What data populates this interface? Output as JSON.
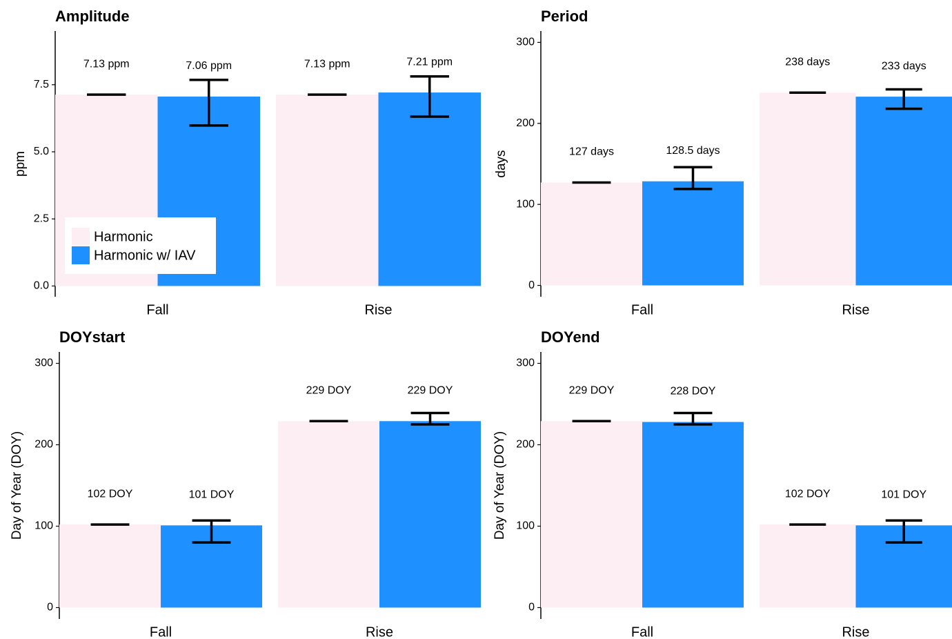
{
  "chart_data": [
    {
      "type": "bar",
      "title": "Amplitude",
      "ylabel": "ppm",
      "categories": [
        "Fall",
        "Rise"
      ],
      "series": [
        {
          "name": "Harmonic",
          "color": "#fdeef3",
          "values": [
            7.13,
            7.13
          ],
          "value_labels": [
            "7.13 ppm",
            "7.13 ppm"
          ],
          "error_low": [
            7.13,
            7.13
          ],
          "error_high": [
            7.13,
            7.13
          ]
        },
        {
          "name": "Harmonic w/ IAV",
          "color": "#1e90ff",
          "values": [
            7.06,
            7.21
          ],
          "value_labels": [
            "7.06 ppm",
            "7.21 ppm"
          ],
          "error_low": [
            5.98,
            6.31
          ],
          "error_high": [
            7.68,
            7.81
          ]
        }
      ],
      "ylim": [
        -0.4,
        9.5
      ],
      "yticks": [
        {
          "value": 0,
          "label": "0.0"
        },
        2.5,
        {
          "value": 5,
          "label": "5.0"
        },
        7.5
      ],
      "legend": "bottom-left"
    },
    {
      "type": "bar",
      "title": "Period",
      "ylabel": "days",
      "categories": [
        "Fall",
        "Rise"
      ],
      "series": [
        {
          "name": "Harmonic",
          "color": "#fdeef3",
          "values": [
            127,
            238
          ],
          "value_labels": [
            "127 days",
            "238 days"
          ],
          "error_low": [
            127,
            238
          ],
          "error_high": [
            127,
            238
          ]
        },
        {
          "name": "Harmonic w/ IAV",
          "color": "#1e90ff",
          "values": [
            128.5,
            233
          ],
          "value_labels": [
            "128.5 days",
            "233 days"
          ],
          "error_low": [
            119,
            218
          ],
          "error_high": [
            146,
            242
          ]
        }
      ],
      "ylim": [
        -14,
        314
      ],
      "yticks": [
        0,
        100,
        200,
        300
      ]
    },
    {
      "type": "bar",
      "title": "DOYstart",
      "ylabel": "Day of Year (DOY)",
      "categories": [
        "Fall",
        "Rise"
      ],
      "series": [
        {
          "name": "Harmonic",
          "color": "#fdeef3",
          "values": [
            102,
            229
          ],
          "value_labels": [
            "102 DOY",
            "229 DOY"
          ],
          "error_low": [
            102,
            229
          ],
          "error_high": [
            102,
            229
          ]
        },
        {
          "name": "Harmonic w/ IAV",
          "color": "#1e90ff",
          "values": [
            101,
            229
          ],
          "value_labels": [
            "101 DOY",
            "229 DOY"
          ],
          "error_low": [
            80,
            225
          ],
          "error_high": [
            107,
            239
          ]
        }
      ],
      "ylim": [
        -14,
        314
      ],
      "yticks": [
        0,
        100,
        200,
        300
      ]
    },
    {
      "type": "bar",
      "title": "DOYend",
      "ylabel": "Day of Year (DOY)",
      "categories": [
        "Fall",
        "Rise"
      ],
      "series": [
        {
          "name": "Harmonic",
          "color": "#fdeef3",
          "values": [
            229,
            102
          ],
          "value_labels": [
            "229 DOY",
            "102 DOY"
          ],
          "error_low": [
            229,
            102
          ],
          "error_high": [
            229,
            102
          ]
        },
        {
          "name": "Harmonic w/ IAV",
          "color": "#1e90ff",
          "values": [
            228,
            101
          ],
          "value_labels": [
            "228 DOY",
            "101 DOY"
          ],
          "error_low": [
            225,
            80
          ],
          "error_high": [
            239,
            107
          ]
        }
      ],
      "ylim": [
        -14,
        314
      ],
      "yticks": [
        0,
        100,
        200,
        300
      ]
    }
  ]
}
